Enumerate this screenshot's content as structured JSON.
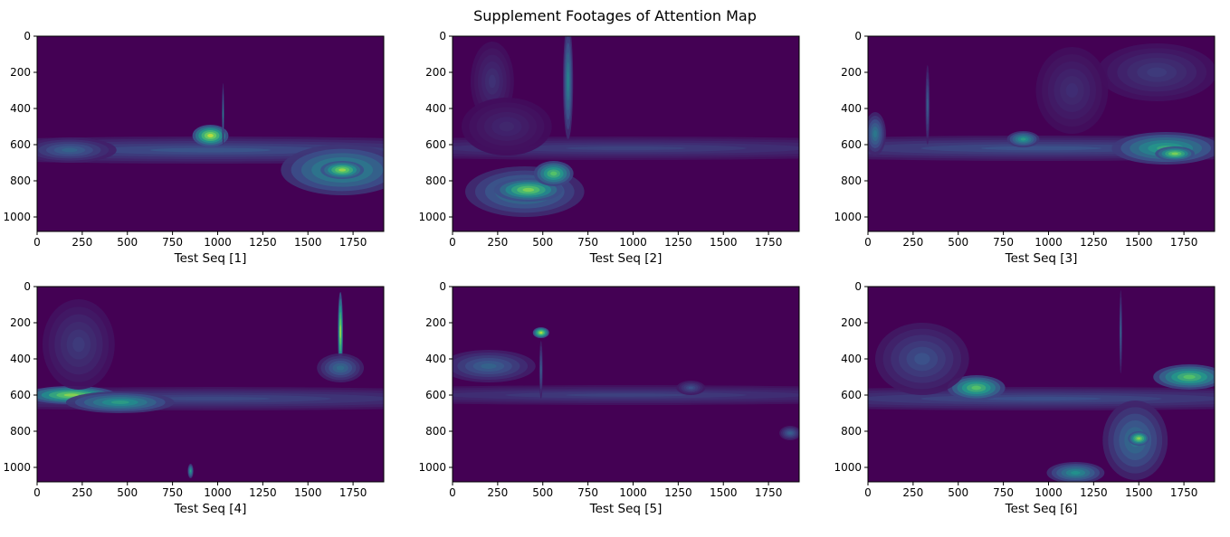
{
  "figure": {
    "title": "Supplement Footages of Attention Map"
  },
  "colors": {
    "background": "#440154",
    "colormap": "viridis"
  },
  "chart_data": [
    {
      "type": "heatmap",
      "xlabel": "Test Seq [1]",
      "xlim": [
        0,
        1920
      ],
      "ylim": [
        1080,
        0
      ],
      "xticks": [
        0,
        250,
        500,
        750,
        1000,
        1250,
        1500,
        1750
      ],
      "yticks": [
        0,
        200,
        400,
        600,
        800,
        1000
      ],
      "blobs": [
        {
          "x": 960,
          "y": 630,
          "rx": 2000,
          "ry": 75,
          "v": 0.26
        },
        {
          "x": 1690,
          "y": 740,
          "rx": 340,
          "ry": 140,
          "v": 0.55
        },
        {
          "x": 1690,
          "y": 740,
          "rx": 120,
          "ry": 50,
          "v": 0.85
        },
        {
          "x": 960,
          "y": 550,
          "rx": 100,
          "ry": 60,
          "v": 0.9
        },
        {
          "x": 1030,
          "y": 430,
          "rx": 6,
          "ry": 170,
          "v": 0.4
        },
        {
          "x": 180,
          "y": 630,
          "rx": 260,
          "ry": 70,
          "v": 0.32
        }
      ]
    },
    {
      "type": "heatmap",
      "xlabel": "Test Seq [2]",
      "xlim": [
        0,
        1920
      ],
      "ylim": [
        1080,
        0
      ],
      "xticks": [
        0,
        250,
        500,
        750,
        1000,
        1250,
        1500,
        1750
      ],
      "yticks": [
        0,
        200,
        400,
        600,
        800,
        1000
      ],
      "blobs": [
        {
          "x": 960,
          "y": 620,
          "rx": 2000,
          "ry": 65,
          "v": 0.2
        },
        {
          "x": 400,
          "y": 860,
          "rx": 330,
          "ry": 140,
          "v": 0.45
        },
        {
          "x": 420,
          "y": 850,
          "rx": 190,
          "ry": 65,
          "v": 0.8
        },
        {
          "x": 560,
          "y": 760,
          "rx": 110,
          "ry": 70,
          "v": 0.72
        },
        {
          "x": 640,
          "y": 250,
          "rx": 28,
          "ry": 320,
          "v": 0.45
        },
        {
          "x": 220,
          "y": 250,
          "rx": 120,
          "ry": 220,
          "v": 0.15
        },
        {
          "x": 300,
          "y": 500,
          "rx": 250,
          "ry": 160,
          "v": 0.12
        }
      ]
    },
    {
      "type": "heatmap",
      "xlabel": "Test Seq [3]",
      "xlim": [
        0,
        1920
      ],
      "ylim": [
        1080,
        0
      ],
      "xticks": [
        0,
        250,
        500,
        750,
        1000,
        1250,
        1500,
        1750
      ],
      "yticks": [
        0,
        200,
        400,
        600,
        800,
        1000
      ],
      "blobs": [
        {
          "x": 960,
          "y": 620,
          "rx": 2000,
          "ry": 70,
          "v": 0.25
        },
        {
          "x": 1650,
          "y": 620,
          "rx": 300,
          "ry": 90,
          "v": 0.6
        },
        {
          "x": 1700,
          "y": 650,
          "rx": 110,
          "ry": 40,
          "v": 0.8
        },
        {
          "x": 860,
          "y": 570,
          "rx": 90,
          "ry": 45,
          "v": 0.55
        },
        {
          "x": 1600,
          "y": 200,
          "rx": 330,
          "ry": 160,
          "v": 0.18
        },
        {
          "x": 1130,
          "y": 300,
          "rx": 200,
          "ry": 240,
          "v": 0.14
        },
        {
          "x": 40,
          "y": 540,
          "rx": 60,
          "ry": 120,
          "v": 0.4
        },
        {
          "x": 330,
          "y": 380,
          "rx": 12,
          "ry": 220,
          "v": 0.3
        }
      ]
    },
    {
      "type": "heatmap",
      "xlabel": "Test Seq [4]",
      "xlim": [
        0,
        1920
      ],
      "ylim": [
        1080,
        0
      ],
      "xticks": [
        0,
        250,
        500,
        750,
        1000,
        1250,
        1500,
        1750
      ],
      "yticks": [
        0,
        200,
        400,
        600,
        800,
        1000
      ],
      "blobs": [
        {
          "x": 960,
          "y": 620,
          "rx": 2000,
          "ry": 65,
          "v": 0.22
        },
        {
          "x": 190,
          "y": 600,
          "rx": 250,
          "ry": 50,
          "v": 0.82
        },
        {
          "x": 460,
          "y": 640,
          "rx": 300,
          "ry": 60,
          "v": 0.55
        },
        {
          "x": 1680,
          "y": 250,
          "rx": 14,
          "ry": 220,
          "v": 0.88
        },
        {
          "x": 1680,
          "y": 450,
          "rx": 130,
          "ry": 80,
          "v": 0.35
        },
        {
          "x": 230,
          "y": 320,
          "rx": 200,
          "ry": 250,
          "v": 0.18
        },
        {
          "x": 850,
          "y": 1020,
          "rx": 16,
          "ry": 40,
          "v": 0.55
        }
      ]
    },
    {
      "type": "heatmap",
      "xlabel": "Test Seq [5]",
      "xlim": [
        0,
        1920
      ],
      "ylim": [
        1080,
        0
      ],
      "xticks": [
        0,
        250,
        500,
        750,
        1000,
        1250,
        1500,
        1750
      ],
      "yticks": [
        0,
        200,
        400,
        600,
        800,
        1000
      ],
      "blobs": [
        {
          "x": 960,
          "y": 600,
          "rx": 2000,
          "ry": 55,
          "v": 0.2
        },
        {
          "x": 200,
          "y": 440,
          "rx": 260,
          "ry": 90,
          "v": 0.32
        },
        {
          "x": 490,
          "y": 255,
          "rx": 45,
          "ry": 30,
          "v": 0.9
        },
        {
          "x": 490,
          "y": 460,
          "rx": 10,
          "ry": 160,
          "v": 0.3
        },
        {
          "x": 1320,
          "y": 560,
          "rx": 80,
          "ry": 40,
          "v": 0.25
        },
        {
          "x": 1870,
          "y": 810,
          "rx": 60,
          "ry": 40,
          "v": 0.3
        }
      ]
    },
    {
      "type": "heatmap",
      "xlabel": "Test Seq [6]",
      "xlim": [
        0,
        1920
      ],
      "ylim": [
        1080,
        0
      ],
      "xticks": [
        0,
        250,
        500,
        750,
        1000,
        1250,
        1500,
        1750
      ],
      "yticks": [
        0,
        200,
        400,
        600,
        800,
        1000
      ],
      "blobs": [
        {
          "x": 960,
          "y": 620,
          "rx": 2000,
          "ry": 65,
          "v": 0.24
        },
        {
          "x": 600,
          "y": 560,
          "rx": 160,
          "ry": 70,
          "v": 0.72
        },
        {
          "x": 1780,
          "y": 500,
          "rx": 200,
          "ry": 70,
          "v": 0.72
        },
        {
          "x": 1480,
          "y": 850,
          "rx": 180,
          "ry": 220,
          "v": 0.38
        },
        {
          "x": 1500,
          "y": 840,
          "rx": 60,
          "ry": 40,
          "v": 0.82
        },
        {
          "x": 1150,
          "y": 1030,
          "rx": 160,
          "ry": 60,
          "v": 0.5
        },
        {
          "x": 300,
          "y": 400,
          "rx": 260,
          "ry": 200,
          "v": 0.25
        },
        {
          "x": 1400,
          "y": 250,
          "rx": 8,
          "ry": 230,
          "v": 0.32
        }
      ]
    }
  ]
}
